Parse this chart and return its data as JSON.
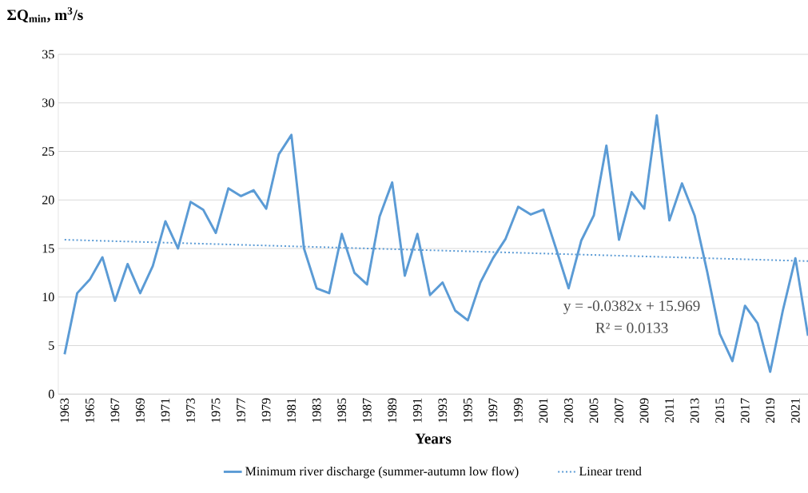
{
  "chart_data": {
    "type": "line",
    "ylabel": "ΣQ$_{min}$, m$^{3}$/s",
    "xlabel": "Years",
    "x": [
      1963,
      1964,
      1965,
      1966,
      1967,
      1968,
      1969,
      1970,
      1971,
      1972,
      1973,
      1974,
      1975,
      1976,
      1977,
      1978,
      1979,
      1980,
      1981,
      1982,
      1983,
      1984,
      1985,
      1986,
      1987,
      1988,
      1989,
      1990,
      1991,
      1992,
      1993,
      1994,
      1995,
      1996,
      1997,
      1998,
      1999,
      2000,
      2001,
      2002,
      2003,
      2004,
      2005,
      2006,
      2007,
      2008,
      2009,
      2010,
      2011,
      2012,
      2013,
      2014,
      2015,
      2016,
      2017,
      2018,
      2019,
      2020,
      2021,
      2022
    ],
    "series": [
      {
        "name": "Minimum river discharge (summer-autumn low flow)",
        "color": "#5b9bd5",
        "line_style": "solid",
        "values": [
          4.1,
          10.4,
          11.8,
          14.1,
          9.6,
          13.4,
          10.4,
          13.2,
          17.8,
          15.0,
          19.8,
          19.0,
          16.6,
          21.2,
          20.4,
          21.0,
          19.1,
          24.7,
          26.7,
          15.0,
          10.9,
          10.4,
          16.5,
          12.5,
          11.3,
          18.3,
          21.8,
          12.2,
          16.5,
          10.2,
          11.5,
          8.6,
          7.6,
          11.5,
          14.0,
          16.0,
          19.3,
          18.5,
          19.0,
          15.0,
          10.9,
          15.8,
          18.4,
          25.6,
          15.9,
          20.8,
          19.1,
          28.7,
          17.9,
          21.7,
          18.4,
          12.6,
          6.2,
          3.4,
          9.1,
          7.3,
          2.3,
          8.6,
          14.0,
          6.0
        ]
      },
      {
        "name": "Linear trend",
        "color": "#5b9bd5",
        "line_style": "dotted",
        "x": [
          1963,
          2022
        ],
        "values": [
          15.9,
          13.7
        ]
      }
    ],
    "xlim": [
      1962.5,
      2022
    ],
    "xticks": [
      1963,
      1965,
      1967,
      1969,
      1971,
      1973,
      1975,
      1977,
      1979,
      1981,
      1983,
      1985,
      1987,
      1989,
      1991,
      1993,
      1995,
      1997,
      1999,
      2001,
      2003,
      2005,
      2007,
      2009,
      2011,
      2013,
      2015,
      2017,
      2019,
      2021
    ],
    "ylim": [
      0,
      35
    ],
    "yticks": [
      0,
      5,
      10,
      15,
      20,
      25,
      30,
      35
    ],
    "grid": "y",
    "legend": "bottom",
    "marker": "none",
    "annotations": [
      "y = -0.0382x + 15.969",
      "R² = 0.0133"
    ]
  }
}
